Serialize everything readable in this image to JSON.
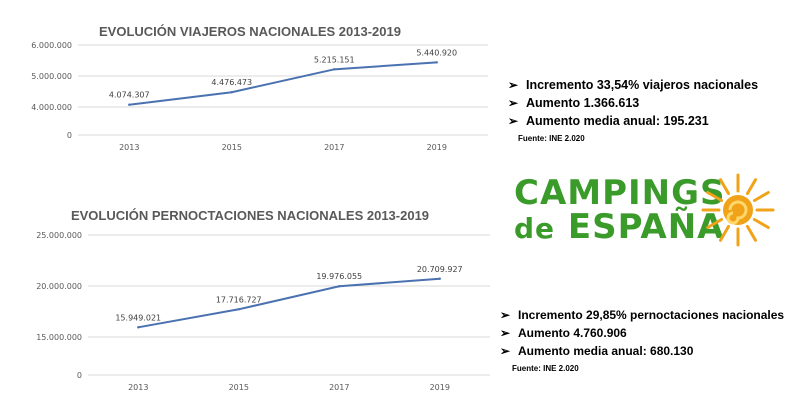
{
  "chart_data": [
    {
      "type": "line",
      "title": "EVOLUCIÓN VIAJEROS NACIONALES 2013-2019",
      "categories": [
        "2013",
        "2015",
        "2017",
        "2019"
      ],
      "values": [
        4074307,
        4476473,
        5215151,
        5440920
      ],
      "value_labels": [
        "4.074.307",
        "4.476.473",
        "5.215.151",
        "5.440.920"
      ],
      "yticks": [
        0,
        4000000,
        5000000,
        6000000
      ],
      "ytick_labels": [
        "0",
        "4.000.000",
        "5.000.000",
        "6.000.000"
      ],
      "ylim": [
        3000000,
        6000000
      ],
      "axis_break": true,
      "grid": true,
      "color": "#4a72b0"
    },
    {
      "type": "line",
      "title": "EVOLUCIÓN PERNOCTACIONES NACIONALES 2013-2019",
      "categories": [
        "2013",
        "2015",
        "2017",
        "2019"
      ],
      "values": [
        15949021,
        17716727,
        19976055,
        20709927
      ],
      "value_labels": [
        "15.949.021",
        "17.716.727",
        "19.976.055",
        "20.709.927"
      ],
      "yticks": [
        0,
        15000000,
        20000000,
        25000000
      ],
      "ytick_labels": [
        "0",
        "15.000.000",
        "20.000.000",
        "25.000.000"
      ],
      "ylim": [
        10000000,
        25000000
      ],
      "axis_break": true,
      "grid": true,
      "color": "#4a72b0"
    }
  ],
  "summary1": {
    "arrow": "➢",
    "items": [
      "Incremento 33,54% viajeros nacionales",
      "Aumento 1.366.613",
      "Aumento media anual: 195.231"
    ],
    "source": "Fuente: INE 2.020"
  },
  "summary2": {
    "arrow": "➢",
    "items": [
      "Incremento 29,85% pernoctaciones nacionales",
      "Aumento 4.760.906",
      "Aumento media anual: 680.130"
    ],
    "source": "Fuente: INE 2.020"
  },
  "logo": {
    "line1": "CAMPINGS",
    "line2_de": "de",
    "line2_main": "ESPAÑA",
    "color": "#3a9a2a",
    "sun_color": "#f0a318"
  }
}
